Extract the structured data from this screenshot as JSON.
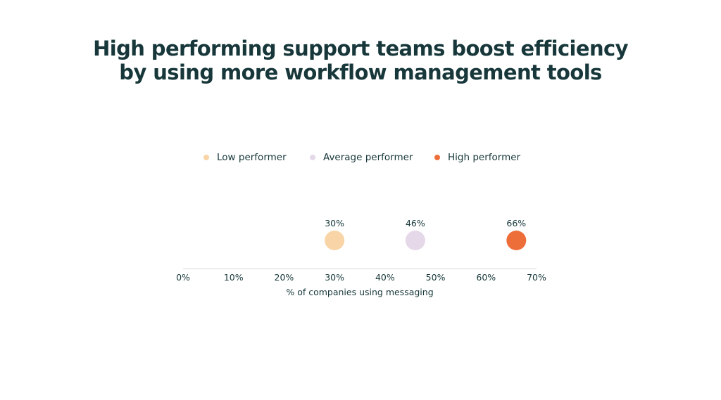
{
  "title_lines": [
    "High performing support teams boost efficiency",
    "by using more workflow management tools"
  ],
  "legend": [
    {
      "label": "Low performer",
      "color": "#f8d4a6"
    },
    {
      "label": "Average performer",
      "color": "#e5d8e8"
    },
    {
      "label": "High performer",
      "color": "#ee6e3a"
    }
  ],
  "chart_data": {
    "type": "scatter",
    "xlabel": "% of companies using messaging",
    "xlim": [
      0,
      70
    ],
    "x_ticks": [
      0,
      10,
      20,
      30,
      40,
      50,
      60,
      70
    ],
    "x_tick_labels": [
      "0%",
      "10%",
      "20%",
      "30%",
      "40%",
      "50%",
      "60%",
      "70%"
    ],
    "grid": false,
    "legend_position": "top",
    "series": [
      {
        "name": "Low performer",
        "x": 30,
        "label": "30%",
        "color": "#f8d4a6"
      },
      {
        "name": "Average performer",
        "x": 46,
        "label": "46%",
        "color": "#e5d8e8"
      },
      {
        "name": "High performer",
        "x": 66,
        "label": "66%",
        "color": "#ee6e3a"
      }
    ]
  }
}
